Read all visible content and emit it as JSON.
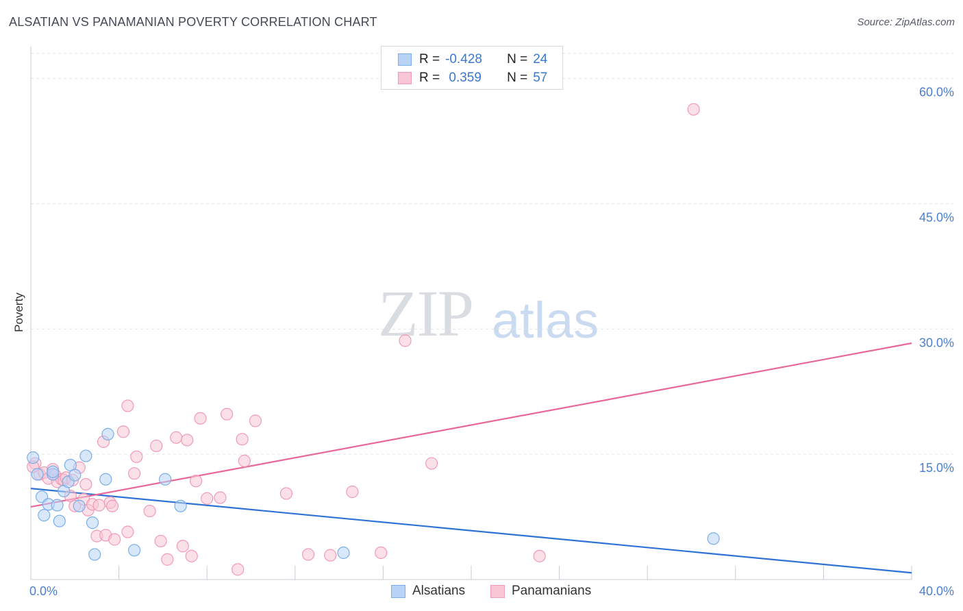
{
  "header": {
    "title": "ALSATIAN VS PANAMANIAN POVERTY CORRELATION CHART",
    "source": "Source: ZipAtlas.com"
  },
  "watermark": {
    "zip": "ZIP",
    "atlas": "atlas"
  },
  "legend": {
    "alsatians": {
      "r_label": "R =",
      "r_value": "-0.428",
      "n_label": "N =",
      "n_value": "24"
    },
    "panamanians": {
      "r_label": "R =",
      "r_value": " 0.359",
      "n_label": "N =",
      "n_value": "57"
    }
  },
  "bottom_legend": {
    "alsatians": "Alsatians",
    "panamanians": "Panamanians"
  },
  "colors": {
    "alsatian_fill": "#b8d3f5",
    "alsatian_stroke": "#7aaee8",
    "alsatian_line": "#2f72d6",
    "panamanian_fill": "#f9c6d6",
    "panamanian_stroke": "#f09ab6",
    "panamanian_line": "#e8679a",
    "tick_color": "#4a7fd0"
  },
  "chart_data": {
    "type": "scatter",
    "title": "ALSATIAN VS PANAMANIAN POVERTY CORRELATION CHART",
    "xlabel": "",
    "ylabel": "Poverty",
    "xlim": [
      0,
      40
    ],
    "ylim": [
      0,
      63
    ],
    "x_tick_labels": [
      "0.0%",
      "40.0%"
    ],
    "y_ticks": [
      15,
      30,
      45,
      60
    ],
    "y_tick_labels": [
      "15.0%",
      "30.0%",
      "45.0%",
      "60.0%"
    ],
    "grid": true,
    "legend_position": "top-center",
    "series": [
      {
        "name": "Alsatians",
        "points": [
          [
            0.1,
            14.6
          ],
          [
            0.3,
            12.6
          ],
          [
            0.5,
            9.9
          ],
          [
            0.6,
            7.7
          ],
          [
            0.8,
            9.0
          ],
          [
            1.0,
            12.6
          ],
          [
            1.0,
            12.9
          ],
          [
            1.2,
            8.9
          ],
          [
            1.3,
            7.0
          ],
          [
            1.5,
            10.6
          ],
          [
            1.7,
            11.7
          ],
          [
            1.8,
            13.7
          ],
          [
            2.0,
            12.5
          ],
          [
            2.2,
            8.8
          ],
          [
            2.5,
            14.8
          ],
          [
            2.8,
            6.8
          ],
          [
            2.9,
            3.0
          ],
          [
            3.4,
            12.0
          ],
          [
            3.5,
            17.4
          ],
          [
            4.7,
            3.5
          ],
          [
            6.1,
            12.0
          ],
          [
            6.8,
            8.8
          ],
          [
            14.2,
            3.2
          ],
          [
            31.0,
            4.9
          ]
        ],
        "trend": [
          [
            0,
            10.9
          ],
          [
            40,
            0.8
          ]
        ]
      },
      {
        "name": "Panamanians",
        "points": [
          [
            0.2,
            13.9
          ],
          [
            0.4,
            12.6
          ],
          [
            0.6,
            12.8
          ],
          [
            0.8,
            12.1
          ],
          [
            1.0,
            13.2
          ],
          [
            1.1,
            12.5
          ],
          [
            1.2,
            11.7
          ],
          [
            1.4,
            12.0
          ],
          [
            1.5,
            11.9
          ],
          [
            1.6,
            12.2
          ],
          [
            1.8,
            10.0
          ],
          [
            1.9,
            11.9
          ],
          [
            2.0,
            8.8
          ],
          [
            2.2,
            13.4
          ],
          [
            2.4,
            9.6
          ],
          [
            2.5,
            11.4
          ],
          [
            2.6,
            8.3
          ],
          [
            2.8,
            9.0
          ],
          [
            3.0,
            5.2
          ],
          [
            3.1,
            8.9
          ],
          [
            3.3,
            16.5
          ],
          [
            3.4,
            5.3
          ],
          [
            3.6,
            9.2
          ],
          [
            3.7,
            8.8
          ],
          [
            3.8,
            4.8
          ],
          [
            4.2,
            17.7
          ],
          [
            4.4,
            5.7
          ],
          [
            4.4,
            20.8
          ],
          [
            4.7,
            12.7
          ],
          [
            4.8,
            14.7
          ],
          [
            5.4,
            8.2
          ],
          [
            5.7,
            16.0
          ],
          [
            5.9,
            4.6
          ],
          [
            6.2,
            2.4
          ],
          [
            6.6,
            17.0
          ],
          [
            6.9,
            4.0
          ],
          [
            7.1,
            16.7
          ],
          [
            7.3,
            2.8
          ],
          [
            7.5,
            11.8
          ],
          [
            7.7,
            19.3
          ],
          [
            8.0,
            9.7
          ],
          [
            8.6,
            9.8
          ],
          [
            8.9,
            19.8
          ],
          [
            9.4,
            1.2
          ],
          [
            9.6,
            16.8
          ],
          [
            9.7,
            14.2
          ],
          [
            10.2,
            19.0
          ],
          [
            11.6,
            10.3
          ],
          [
            12.6,
            3.0
          ],
          [
            13.6,
            2.9
          ],
          [
            14.6,
            10.5
          ],
          [
            15.9,
            3.2
          ],
          [
            17.0,
            28.6
          ],
          [
            18.2,
            13.9
          ],
          [
            23.1,
            2.8
          ],
          [
            30.1,
            56.3
          ],
          [
            0.1,
            13.5
          ]
        ],
        "trend": [
          [
            0,
            8.7
          ],
          [
            40,
            28.3
          ]
        ]
      }
    ]
  }
}
